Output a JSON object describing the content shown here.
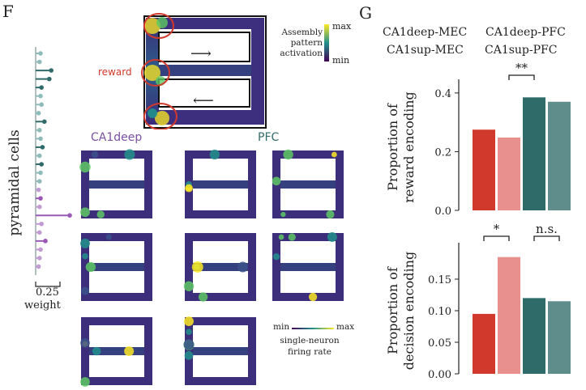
{
  "panels": {
    "left": "F",
    "right": "G"
  },
  "weights": {
    "ylabel": "pyramidal cells",
    "scale_value": "0.25",
    "scale_label": "weight",
    "stems": [
      {
        "w": 0.05,
        "c": "#8fbcbb"
      },
      {
        "w": 0.04,
        "c": "#8fbcbb"
      },
      {
        "w": 0.16,
        "c": "#2f6b6b"
      },
      {
        "w": 0.14,
        "c": "#2f6b6b"
      },
      {
        "w": 0.06,
        "c": "#2f6b6b"
      },
      {
        "w": 0.05,
        "c": "#8fbcbb"
      },
      {
        "w": 0.06,
        "c": "#8fbcbb"
      },
      {
        "w": 0.03,
        "c": "#8fbcbb"
      },
      {
        "w": 0.09,
        "c": "#2f6b6b"
      },
      {
        "w": 0.04,
        "c": "#8fbcbb"
      },
      {
        "w": 0.05,
        "c": "#8fbcbb"
      },
      {
        "w": 0.07,
        "c": "#2f6b6b"
      },
      {
        "w": 0.04,
        "c": "#8fbcbb"
      },
      {
        "w": 0.06,
        "c": "#2f6b6b"
      },
      {
        "w": 0.05,
        "c": "#8fbcbb"
      },
      {
        "w": 0.04,
        "c": "#8fbcbb"
      },
      {
        "w": 0.03,
        "c": "#c39bd3"
      },
      {
        "w": 0.05,
        "c": "#9b59b6"
      },
      {
        "w": 0.04,
        "c": "#c39bd3"
      },
      {
        "w": 0.35,
        "c": "#9b59b6"
      },
      {
        "w": 0.06,
        "c": "#c39bd3"
      },
      {
        "w": 0.04,
        "c": "#c39bd3"
      },
      {
        "w": 0.1,
        "c": "#9b59b6"
      },
      {
        "w": 0.05,
        "c": "#c39bd3"
      },
      {
        "w": 0.04,
        "c": "#c39bd3"
      },
      {
        "w": 0.03,
        "c": "#c39bd3"
      }
    ]
  },
  "maze": {
    "reward_label": "reward",
    "arrow_right": "⟶",
    "arrow_left": "⟵",
    "colorbar_title": [
      "Assembly",
      "pattern",
      "activation"
    ],
    "colorbar_max": "max",
    "colorbar_min": "min"
  },
  "groups": {
    "left": "CA1deep",
    "right": "PFC"
  },
  "neuron_colorbar": {
    "min": "min",
    "max": "max",
    "label": [
      "single-neuron",
      "firing rate"
    ]
  },
  "legend": [
    {
      "label": "CA1deep-MEC",
      "color": "#d0392b"
    },
    {
      "label": "CA1deep-PFC",
      "color": "#2e6b69"
    },
    {
      "label": "CA1sup-MEC",
      "color": "#e7908e"
    },
    {
      "label": "CA1sup-PFC",
      "color": "#8fbcb9"
    }
  ],
  "chart_data": [
    {
      "type": "bar",
      "categories": [
        "CA1deep-MEC",
        "CA1sup-MEC",
        "CA1deep-PFC",
        "CA1sup-PFC"
      ],
      "values": [
        0.275,
        0.248,
        0.385,
        0.37
      ],
      "colors": [
        "#d0392b",
        "#e7908e",
        "#2e6b69",
        "#5f8d8b"
      ],
      "ylabel": [
        "Proportion of",
        "reward encoding"
      ],
      "yticks": [
        "0.0",
        "0.2",
        "0.4"
      ],
      "ylim": [
        0,
        0.43
      ],
      "annotations": [
        {
          "text": "**",
          "from": 1,
          "to": 2
        }
      ]
    },
    {
      "type": "bar",
      "categories": [
        "CA1deep-MEC",
        "CA1sup-MEC",
        "CA1deep-PFC",
        "CA1sup-PFC"
      ],
      "values": [
        0.095,
        0.185,
        0.12,
        0.115
      ],
      "colors": [
        "#d0392b",
        "#e7908e",
        "#2e6b69",
        "#5f8d8b"
      ],
      "ylabel": [
        "Proportion of",
        "decision encoding"
      ],
      "yticks": [
        "0.00",
        "0.05",
        "0.10",
        "0.15"
      ],
      "ylim": [
        0,
        0.2
      ],
      "annotations": [
        {
          "text": "*",
          "from": 0,
          "to": 1
        },
        {
          "text": "n.s.",
          "from": 2,
          "to": 3
        }
      ]
    }
  ]
}
